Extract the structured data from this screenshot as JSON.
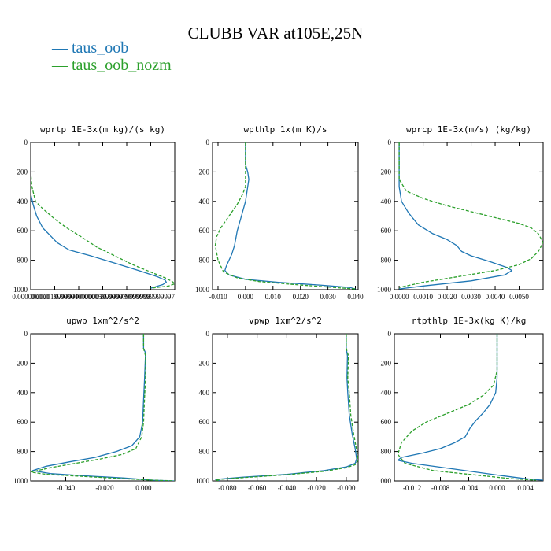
{
  "title": "CLUBB VAR at105E,25N",
  "colors": {
    "taus_oob": "#1f77b4",
    "taus_oob_nozm": "#2ca02c"
  },
  "legend": [
    {
      "label": "taus_oob",
      "color": "#1f77b4",
      "dash": "solid"
    },
    {
      "label": "taus_oob_nozm",
      "color": "#2ca02c",
      "dash": "dashed"
    }
  ],
  "chart_data": [
    {
      "type": "line",
      "title": "wprtp  1E-3x(m kg)/(s kg)",
      "xlim": [
        0,
        0.00012
      ],
      "ylim": [
        1000,
        0
      ],
      "xticks": [
        0,
        2e-05,
        4e-05,
        6e-05,
        8e-05,
        0.0001
      ],
      "xticklabels": [
        "0.000000000",
        "0.000019999999",
        "0.000040000001",
        "0.000059999998",
        "0.000079999998",
        "0.000099999997"
      ],
      "yticks": [
        0,
        200,
        400,
        600,
        800,
        1000
      ],
      "series": [
        {
          "name": "taus_oob",
          "x": [
            0,
            0,
            2e-06,
            5e-06,
            1e-05,
            1.6e-05,
            2.2e-05,
            3.2e-05,
            5e-05,
            7e-05,
            9e-05,
            0.000105,
            0.000112,
            0.000113,
            0.00011,
            0.0001
          ],
          "y": [
            200,
            350,
            420,
            500,
            580,
            630,
            680,
            730,
            770,
            820,
            870,
            910,
            935,
            950,
            965,
            990
          ]
        },
        {
          "name": "taus_oob_nozm",
          "x": [
            0,
            1e-06,
            4e-06,
            1e-05,
            2e-05,
            3e-05,
            4.2e-05,
            5.5e-05,
            7e-05,
            8.5e-05,
            0.0001,
            0.000112,
            0.000118,
            0.00012,
            0.000115,
            0.0001
          ],
          "y": [
            200,
            300,
            400,
            450,
            520,
            580,
            640,
            710,
            770,
            830,
            880,
            920,
            945,
            960,
            975,
            990
          ]
        }
      ]
    },
    {
      "type": "line",
      "title": "wpthlp  1x(m K)/s",
      "xlim": [
        -0.012,
        0.041
      ],
      "ylim": [
        1000,
        0
      ],
      "xticks": [
        -0.01,
        0,
        0.01,
        0.02,
        0.03,
        0.04
      ],
      "xticklabels": [
        "-0.010",
        "0.000",
        "0.010",
        "0.020",
        "0.030",
        "0.040"
      ],
      "yticks": [
        0,
        200,
        400,
        600,
        800,
        1000
      ],
      "series": [
        {
          "name": "taus_oob",
          "x": [
            0.0,
            0.0,
            0.0008,
            0.0012,
            0.0008,
            0.0,
            -0.0015,
            -0.003,
            -0.004,
            -0.005,
            -0.006,
            -0.007,
            -0.0075,
            -0.006,
            0.0,
            0.012,
            0.028,
            0.038,
            0.04
          ],
          "y": [
            0,
            150,
            200,
            250,
            300,
            400,
            500,
            600,
            700,
            760,
            800,
            840,
            870,
            900,
            930,
            950,
            970,
            985,
            995
          ]
        },
        {
          "name": "taus_oob_nozm",
          "x": [
            0.0,
            0.0,
            0.0,
            -0.001,
            -0.003,
            -0.006,
            -0.009,
            -0.0105,
            -0.011,
            -0.01,
            -0.008,
            -0.003,
            0.005,
            0.018,
            0.032,
            0.04
          ],
          "y": [
            0,
            150,
            300,
            350,
            420,
            500,
            580,
            640,
            700,
            800,
            880,
            920,
            945,
            965,
            985,
            995
          ]
        }
      ]
    },
    {
      "type": "line",
      "title": "wprcp  1E-3x(m/s) (kg/kg)",
      "xlim": [
        -0.0002,
        0.006
      ],
      "ylim": [
        1000,
        0
      ],
      "xticks": [
        0,
        0.001,
        0.002,
        0.003,
        0.004,
        0.005
      ],
      "xticklabels": [
        "0.0000",
        "0.0010",
        "0.0020",
        "0.0030",
        "0.0040",
        "0.0050"
      ],
      "yticks": [
        0,
        200,
        400,
        600,
        800,
        1000
      ],
      "series": [
        {
          "name": "taus_oob",
          "x": [
            0,
            0,
            0.0001,
            0.0004,
            0.0008,
            0.0014,
            0.002,
            0.0024,
            0.0026,
            0.003,
            0.0038,
            0.0045,
            0.0047,
            0.0044,
            0.003,
            0.001,
            0.0
          ],
          "y": [
            0,
            300,
            400,
            480,
            560,
            620,
            660,
            700,
            740,
            770,
            810,
            850,
            870,
            900,
            940,
            975,
            995
          ]
        },
        {
          "name": "taus_oob_nozm",
          "x": [
            0,
            0,
            0.0003,
            0.001,
            0.002,
            0.003,
            0.004,
            0.005,
            0.0055,
            0.0058,
            0.006,
            0.0058,
            0.0055,
            0.005,
            0.004,
            0.0025,
            0.001,
            0.0
          ],
          "y": [
            0,
            250,
            330,
            380,
            430,
            470,
            510,
            550,
            580,
            620,
            680,
            740,
            790,
            830,
            870,
            910,
            950,
            985
          ]
        }
      ]
    },
    {
      "type": "line",
      "title": "upwp  1xm^2/s^2",
      "xlim": [
        -0.058,
        0.016
      ],
      "ylim": [
        1000,
        0
      ],
      "xticks": [
        -0.04,
        -0.02,
        0
      ],
      "xticklabels": [
        "-0.040",
        "-0.020",
        "0.000"
      ],
      "yticks": [
        0,
        200,
        400,
        600,
        800,
        1000
      ],
      "series": [
        {
          "name": "taus_oob",
          "x": [
            0,
            0,
            0.001,
            0.0005,
            0.0,
            -0.0005,
            -0.002,
            -0.006,
            -0.014,
            -0.025,
            -0.038,
            -0.05,
            -0.057,
            -0.048,
            -0.03,
            -0.01,
            0.005,
            0.016
          ],
          "y": [
            0,
            100,
            130,
            300,
            450,
            600,
            700,
            760,
            800,
            840,
            870,
            900,
            930,
            950,
            965,
            980,
            995,
            1000
          ]
        },
        {
          "name": "taus_oob_nozm",
          "x": [
            0,
            0,
            0.001,
            0.001,
            0.0005,
            0.0,
            -0.001,
            -0.004,
            -0.011,
            -0.022,
            -0.035,
            -0.048,
            -0.058,
            -0.05,
            -0.03,
            -0.01,
            0.005,
            0.016
          ],
          "y": [
            0,
            100,
            150,
            300,
            430,
            600,
            700,
            780,
            820,
            850,
            880,
            910,
            940,
            955,
            970,
            985,
            995,
            1000
          ]
        }
      ]
    },
    {
      "type": "line",
      "title": "vpwp  1xm^2/s^2",
      "xlim": [
        -0.09,
        0.008
      ],
      "ylim": [
        1000,
        0
      ],
      "xticks": [
        -0.08,
        -0.06,
        -0.04,
        -0.02,
        0
      ],
      "xticklabels": [
        "-0.080",
        "-0.060",
        "-0.040",
        "-0.020",
        "-0.000"
      ],
      "yticks": [
        0,
        200,
        400,
        600,
        800,
        1000
      ],
      "series": [
        {
          "name": "taus_oob",
          "x": [
            0,
            0,
            0.0008,
            0.0005,
            0.001,
            0.002,
            0.004,
            0.006,
            0.007,
            0.006,
            0.0,
            -0.015,
            -0.04,
            -0.07,
            -0.088,
            -0.085
          ],
          "y": [
            0,
            100,
            150,
            300,
            400,
            550,
            680,
            780,
            850,
            880,
            905,
            930,
            955,
            975,
            990,
            1000
          ]
        },
        {
          "name": "taus_oob_nozm",
          "x": [
            0,
            0,
            0.0015,
            0.001,
            0.002,
            0.003,
            0.005,
            0.007,
            0.008,
            0.006,
            0.0,
            -0.015,
            -0.04,
            -0.07,
            -0.088,
            -0.086
          ],
          "y": [
            0,
            100,
            150,
            300,
            400,
            550,
            680,
            790,
            860,
            890,
            910,
            935,
            958,
            978,
            992,
            1000
          ]
        }
      ]
    },
    {
      "type": "line",
      "title": "rtpthlp  1E-3x(kg K)/kg",
      "xlim": [
        -0.0145,
        0.0065
      ],
      "ylim": [
        1000,
        0
      ],
      "xticks": [
        -0.012,
        -0.008,
        -0.004,
        0,
        0.004
      ],
      "xticklabels": [
        "-0.012",
        "-0.008",
        "-0.004",
        "0.000",
        "0.004"
      ],
      "yticks": [
        0,
        200,
        400,
        600,
        800,
        1000
      ],
      "series": [
        {
          "name": "taus_oob",
          "x": [
            0,
            0,
            -0.0002,
            -0.001,
            -0.002,
            -0.003,
            -0.0038,
            -0.0045,
            -0.006,
            -0.008,
            -0.0105,
            -0.0135,
            -0.014,
            -0.012,
            -0.006,
            0.0,
            0.004,
            0.0065
          ],
          "y": [
            0,
            300,
            400,
            480,
            540,
            590,
            640,
            700,
            740,
            780,
            810,
            840,
            860,
            880,
            920,
            960,
            985,
            995
          ]
        },
        {
          "name": "taus_oob_nozm",
          "x": [
            0,
            0,
            -0.0005,
            -0.002,
            -0.004,
            -0.007,
            -0.01,
            -0.012,
            -0.0135,
            -0.014,
            -0.013,
            -0.009,
            -0.003,
            0.002,
            0.0055
          ],
          "y": [
            0,
            250,
            350,
            420,
            480,
            540,
            600,
            660,
            740,
            820,
            880,
            930,
            960,
            985,
            995
          ]
        }
      ]
    }
  ]
}
